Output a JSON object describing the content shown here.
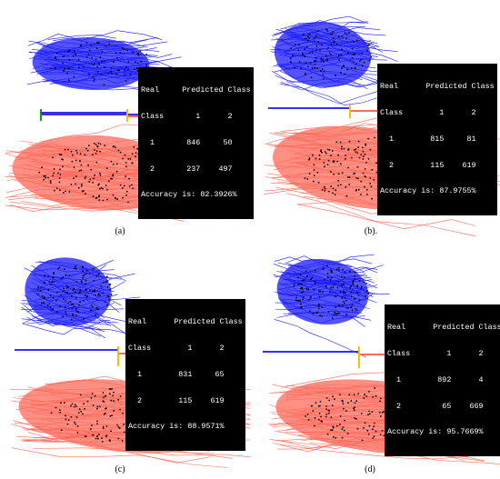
{
  "panels": [
    {
      "caption": "(a)",
      "matrix": {
        "header1": "Real     Predicted Class",
        "header2": "Class       1      2",
        "row1": "  1       846     50",
        "row2": "  2       237    497",
        "accuracy": "Accuracy is: 82.3926%"
      }
    },
    {
      "caption": "(b).",
      "matrix": {
        "header1": "Real      Predicted Class",
        "header2": "Class        1      2",
        "row1": "  1        815     81",
        "row2": "  2        115    619",
        "accuracy": "Accuracy is: 87.9755%"
      }
    },
    {
      "caption": "(c)",
      "matrix": {
        "header1": "Real      Predicted Class",
        "header2": "Class        1      2",
        "row1": "  1        831     65",
        "row2": "  2        115    619",
        "accuracy": "Accuracy is: 88.9571%"
      }
    },
    {
      "caption": "(d)",
      "matrix": {
        "header1": "Real      Predicted Class",
        "header2": "Class        1      2",
        "row1": "  1        892      4",
        "row2": "  2         65    669",
        "accuracy": "Accuracy is: 95.7669%"
      }
    }
  ],
  "colors": {
    "class1": "#1a1aff",
    "class2": "#ff6a5a",
    "points": "#000000",
    "divider": "#f2c200",
    "axis_end": "#1a9a1a"
  }
}
